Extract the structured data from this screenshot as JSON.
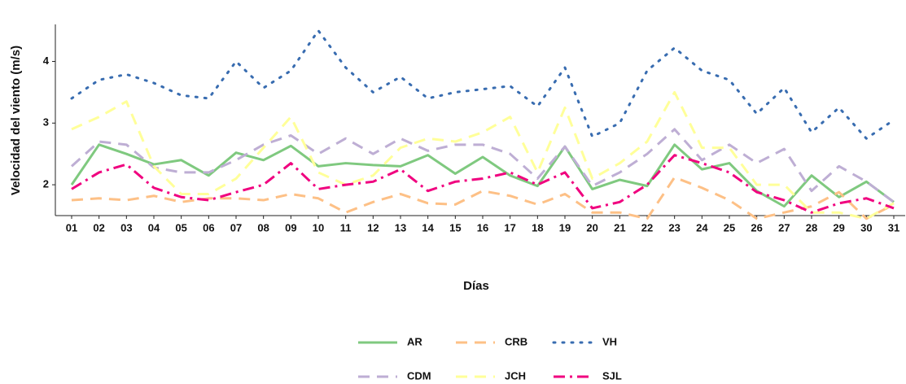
{
  "chart_data": {
    "type": "line",
    "x_label": "Días",
    "y_label": "Velocidad del viento (m/s)",
    "categories": [
      "01",
      "02",
      "03",
      "04",
      "05",
      "06",
      "07",
      "08",
      "09",
      "10",
      "11",
      "12",
      "13",
      "14",
      "15",
      "16",
      "17",
      "18",
      "19",
      "20",
      "21",
      "22",
      "23",
      "24",
      "25",
      "26",
      "27",
      "28",
      "29",
      "30",
      "31"
    ],
    "ylim": [
      1.5,
      4.6
    ],
    "yticks": [
      2,
      3,
      4
    ],
    "series": [
      {
        "name": "AR",
        "color": "#7fc97f",
        "linestyle": "solid",
        "values": [
          2.0,
          2.65,
          2.5,
          2.33,
          2.4,
          2.15,
          2.52,
          2.4,
          2.63,
          2.3,
          2.35,
          2.32,
          2.3,
          2.48,
          2.18,
          2.45,
          2.15,
          1.98,
          2.62,
          1.93,
          2.08,
          1.98,
          2.65,
          2.25,
          2.35,
          1.9,
          1.65,
          2.15,
          1.8,
          2.05,
          1.72
        ]
      },
      {
        "name": "CRB",
        "color": "#fdc086",
        "linestyle": "dashed",
        "values": [
          1.75,
          1.78,
          1.75,
          1.82,
          1.72,
          1.78,
          1.78,
          1.75,
          1.85,
          1.78,
          1.55,
          1.72,
          1.85,
          1.7,
          1.68,
          1.9,
          1.82,
          1.68,
          1.85,
          1.55,
          1.55,
          1.45,
          2.12,
          1.95,
          1.75,
          1.45,
          1.55,
          1.65,
          1.88,
          1.45,
          1.68
        ]
      },
      {
        "name": "VH",
        "color": "#386cb0",
        "linestyle": "dotted",
        "values": [
          3.4,
          3.7,
          3.79,
          3.65,
          3.45,
          3.4,
          4.0,
          3.57,
          3.85,
          4.5,
          3.9,
          3.5,
          3.75,
          3.4,
          3.5,
          3.55,
          3.6,
          3.27,
          3.9,
          2.78,
          3.0,
          3.85,
          4.22,
          3.85,
          3.7,
          3.15,
          3.57,
          2.85,
          3.25,
          2.75,
          3.05
        ]
      },
      {
        "name": "CDM",
        "color": "#beaed4",
        "linestyle": "dashed",
        "values": [
          2.3,
          2.7,
          2.65,
          2.28,
          2.2,
          2.2,
          2.4,
          2.65,
          2.8,
          2.5,
          2.75,
          2.5,
          2.75,
          2.55,
          2.65,
          2.65,
          2.5,
          2.1,
          2.62,
          1.98,
          2.2,
          2.5,
          2.9,
          2.4,
          2.65,
          2.35,
          2.58,
          1.9,
          2.3,
          2.05,
          1.72
        ]
      },
      {
        "name": "JCH",
        "color": "#ffff99",
        "linestyle": "dashed",
        "values": [
          2.9,
          3.1,
          3.35,
          2.3,
          1.85,
          1.85,
          2.1,
          2.6,
          3.1,
          2.2,
          2.0,
          2.15,
          2.6,
          2.75,
          2.7,
          2.85,
          3.1,
          2.2,
          3.25,
          2.1,
          2.35,
          2.7,
          3.5,
          2.6,
          2.6,
          2.0,
          2.0,
          1.55,
          1.55,
          1.45,
          1.7
        ]
      },
      {
        "name": "SJL",
        "color": "#f0027f",
        "linestyle": "dashdot",
        "values": [
          1.93,
          2.2,
          2.33,
          1.95,
          1.8,
          1.75,
          1.88,
          2.0,
          2.35,
          1.93,
          2.0,
          2.05,
          2.25,
          1.9,
          2.05,
          2.1,
          2.2,
          2.0,
          2.2,
          1.62,
          1.72,
          2.0,
          2.48,
          2.35,
          2.2,
          1.88,
          1.75,
          1.55,
          1.7,
          1.78,
          1.62
        ]
      }
    ],
    "legend_position": "bottom"
  }
}
